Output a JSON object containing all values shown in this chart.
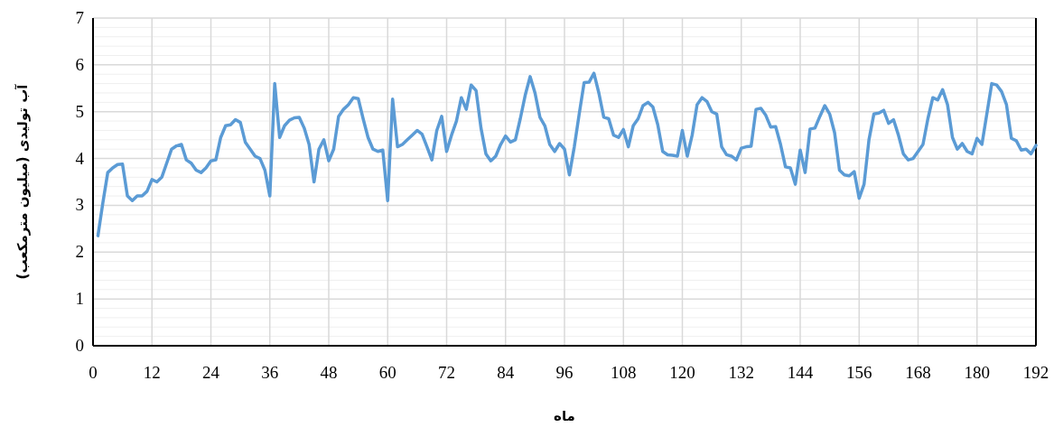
{
  "chart_data": {
    "type": "line",
    "xlabel": "ماه",
    "ylabel": "آب تولیدی (میلیون مترمکعب)",
    "xlim": [
      0,
      192
    ],
    "xticks": [
      0,
      12,
      24,
      36,
      48,
      60,
      72,
      84,
      96,
      108,
      120,
      132,
      144,
      156,
      168,
      180,
      192
    ],
    "ylim": [
      0,
      7
    ],
    "yticks": [
      0,
      1,
      2,
      3,
      4,
      5,
      6,
      7
    ],
    "grid": true,
    "marker": "none",
    "line_style": "solid",
    "x": [
      1,
      2,
      3,
      4,
      5,
      6,
      7,
      8,
      9,
      10,
      11,
      12,
      13,
      14,
      15,
      16,
      17,
      18,
      19,
      20,
      21,
      22,
      23,
      24,
      25,
      26,
      27,
      28,
      29,
      30,
      31,
      32,
      33,
      34,
      35,
      36,
      37,
      38,
      39,
      40,
      41,
      42,
      43,
      44,
      45,
      46,
      47,
      48,
      49,
      50,
      51,
      52,
      53,
      54,
      55,
      56,
      57,
      58,
      59,
      60,
      61,
      62,
      63,
      64,
      65,
      66,
      67,
      68,
      69,
      70,
      71,
      72,
      73,
      74,
      75,
      76,
      77,
      78,
      79,
      80,
      81,
      82,
      83,
      84,
      85,
      86,
      87,
      88,
      89,
      90,
      91,
      92,
      93,
      94,
      95,
      96,
      97,
      98,
      99,
      100,
      101,
      102,
      103,
      104,
      105,
      106,
      107,
      108,
      109,
      110,
      111,
      112,
      113,
      114,
      115,
      116,
      117,
      118,
      119,
      120,
      121,
      122,
      123,
      124,
      125,
      126,
      127,
      128,
      129,
      130,
      131,
      132,
      133,
      134,
      135,
      136,
      137,
      138,
      139,
      140,
      141,
      142,
      143,
      144,
      145,
      146,
      147,
      148,
      149,
      150,
      151,
      152,
      153,
      154,
      155,
      156,
      157,
      158,
      159,
      160,
      161,
      162,
      163,
      164,
      165,
      166,
      167,
      168,
      169,
      170,
      171,
      172,
      173,
      174,
      175,
      176,
      177,
      178,
      179,
      180,
      181,
      182,
      183,
      184,
      185,
      186,
      187,
      188,
      189,
      190,
      191,
      192
    ],
    "series": [
      {
        "color": "#5b9bd5",
        "values": [
          2.35,
          3.05,
          3.7,
          3.8,
          3.87,
          3.88,
          3.2,
          3.1,
          3.2,
          3.2,
          3.3,
          3.55,
          3.5,
          3.6,
          3.9,
          4.2,
          4.27,
          4.3,
          3.97,
          3.9,
          3.75,
          3.7,
          3.8,
          3.95,
          3.97,
          4.45,
          4.7,
          4.72,
          4.83,
          4.77,
          4.35,
          4.2,
          4.05,
          4.0,
          3.75,
          3.2,
          5.6,
          4.45,
          4.7,
          4.82,
          4.87,
          4.88,
          4.65,
          4.3,
          3.5,
          4.2,
          4.4,
          3.95,
          4.2,
          4.9,
          5.05,
          5.15,
          5.3,
          5.28,
          4.85,
          4.45,
          4.2,
          4.15,
          4.18,
          3.1,
          5.27,
          4.25,
          4.3,
          4.4,
          4.5,
          4.6,
          4.52,
          4.25,
          3.97,
          4.6,
          4.9,
          4.15,
          4.5,
          4.8,
          5.3,
          5.05,
          5.57,
          5.45,
          4.65,
          4.1,
          3.95,
          4.05,
          4.3,
          4.48,
          4.35,
          4.4,
          4.85,
          5.35,
          5.75,
          5.4,
          4.88,
          4.7,
          4.3,
          4.15,
          4.32,
          4.2,
          3.65,
          4.25,
          4.95,
          5.62,
          5.63,
          5.82,
          5.4,
          4.88,
          4.85,
          4.5,
          4.45,
          4.62,
          4.25,
          4.7,
          4.85,
          5.13,
          5.2,
          5.1,
          4.72,
          4.15,
          4.08,
          4.07,
          4.05,
          4.6,
          4.05,
          4.5,
          5.15,
          5.3,
          5.22,
          5.0,
          4.95,
          4.25,
          4.08,
          4.05,
          3.97,
          4.22,
          4.25,
          4.26,
          5.05,
          5.07,
          4.92,
          4.67,
          4.68,
          4.3,
          3.82,
          3.8,
          3.45,
          4.18,
          3.7,
          4.63,
          4.65,
          4.9,
          5.13,
          4.95,
          4.55,
          3.75,
          3.65,
          3.63,
          3.72,
          3.15,
          3.45,
          4.4,
          4.95,
          4.97,
          5.03,
          4.75,
          4.83,
          4.5,
          4.1,
          3.97,
          4.0,
          4.15,
          4.3,
          4.85,
          5.3,
          5.25,
          5.47,
          5.15,
          4.45,
          4.2,
          4.32,
          4.15,
          4.1,
          4.43,
          4.3,
          4.95,
          5.6,
          5.57,
          5.43,
          5.15,
          4.43,
          4.38,
          4.18,
          4.2,
          4.1,
          4.28
        ]
      }
    ]
  }
}
